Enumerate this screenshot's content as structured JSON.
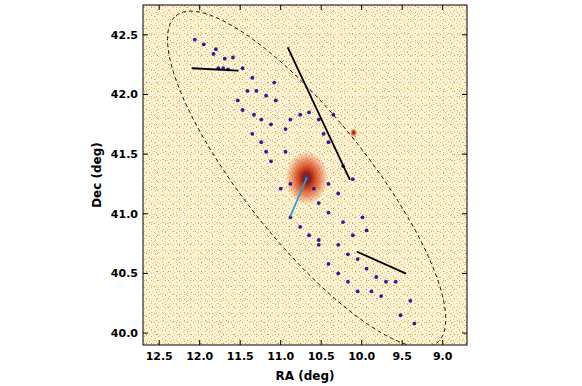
{
  "chart_data": {
    "type": "scatter",
    "xlabel": "RA (deg)",
    "ylabel": "Dec (deg)",
    "xlim": [
      12.7,
      8.7
    ],
    "ylim": [
      39.9,
      42.75
    ],
    "xticks": [
      12.5,
      {
        "value": 12,
        "label": "12.0"
      },
      11.5,
      {
        "value": 11,
        "label": "11.0"
      },
      10.5,
      {
        "value": 10,
        "label": "10.0"
      },
      9.5,
      {
        "value": 9,
        "label": "9.0"
      }
    ],
    "yticks": [
      {
        "value": 40,
        "label": "40.0"
      },
      40.5,
      {
        "value": 41,
        "label": "41.0"
      },
      41.5,
      {
        "value": 42,
        "label": "42.0"
      },
      42.5
    ],
    "grid": false,
    "series": [
      {
        "type": "scatter",
        "marker": "glow",
        "color": "#d9481c",
        "x": [
          10.68,
          10.1
        ],
        "values": [
          41.3,
          41.68
        ],
        "sizes": [
          0.18,
          0.03
        ]
      },
      {
        "type": "scatter",
        "marker": "circle",
        "color": "#2d1b9b",
        "x": [
          12.06,
          11.95,
          11.8,
          11.83,
          11.69,
          11.59,
          11.71,
          11.77,
          11.65,
          11.47,
          11.35,
          11.08,
          11.41,
          11.3,
          11.18,
          11.06,
          11.53,
          11.47,
          11.33,
          11.24,
          11.12,
          10.94,
          10.88,
          10.76,
          10.65,
          10.53,
          10.47,
          10.41,
          10.35,
          11.35,
          11.24,
          11.18,
          11.12,
          10.94,
          10.23,
          10.11,
          11.0,
          10.88,
          10.59,
          10.41,
          10.29,
          10.53,
          10.41,
          10.23,
          10.11,
          9.99,
          9.94,
          10.88,
          10.76,
          10.65,
          10.53,
          10.53,
          10.41,
          10.29,
          10.17,
          10.05,
          10.29,
          10.17,
          10.05,
          9.94,
          9.82,
          9.7,
          9.88,
          9.76,
          9.58,
          9.4,
          9.52,
          9.35
        ],
        "values": [
          42.46,
          42.42,
          42.38,
          42.34,
          42.3,
          42.31,
          42.22,
          42.22,
          42.21,
          42.22,
          42.14,
          42.1,
          42.03,
          42.03,
          41.99,
          41.95,
          41.95,
          41.87,
          41.83,
          41.79,
          41.75,
          41.71,
          41.79,
          41.83,
          41.85,
          41.79,
          41.67,
          41.6,
          41.83,
          41.67,
          41.6,
          41.52,
          41.44,
          41.52,
          41.4,
          41.29,
          41.21,
          41.25,
          41.21,
          41.25,
          41.17,
          41.09,
          41.01,
          40.93,
          40.82,
          40.97,
          40.86,
          40.97,
          40.89,
          40.82,
          40.78,
          40.74,
          40.58,
          40.74,
          40.66,
          40.62,
          40.5,
          40.43,
          40.35,
          40.54,
          40.47,
          40.43,
          40.35,
          40.31,
          40.43,
          40.27,
          40.15,
          40.08
        ]
      },
      {
        "type": "ellipse",
        "color": "#000000",
        "line_style": "dashed",
        "x": [
          10.68
        ],
        "values": [
          41.29
        ],
        "semi_major": [
          1.83
        ],
        "semi_minor": [
          0.55
        ],
        "pa": [
          42
        ]
      },
      {
        "type": "line",
        "color": "#000000",
        "line_style": "solid",
        "x": [
          12.09,
          11.53,
          null,
          10.91,
          10.15,
          null,
          10.05,
          9.46
        ],
        "values": [
          42.22,
          42.2,
          null,
          42.39,
          41.29,
          null,
          40.68,
          40.5
        ]
      },
      {
        "type": "line",
        "color": "#29a3c9",
        "line_style": "solid",
        "x": [
          10.68,
          10.88
        ],
        "values": [
          41.3,
          40.98
        ]
      }
    ]
  }
}
